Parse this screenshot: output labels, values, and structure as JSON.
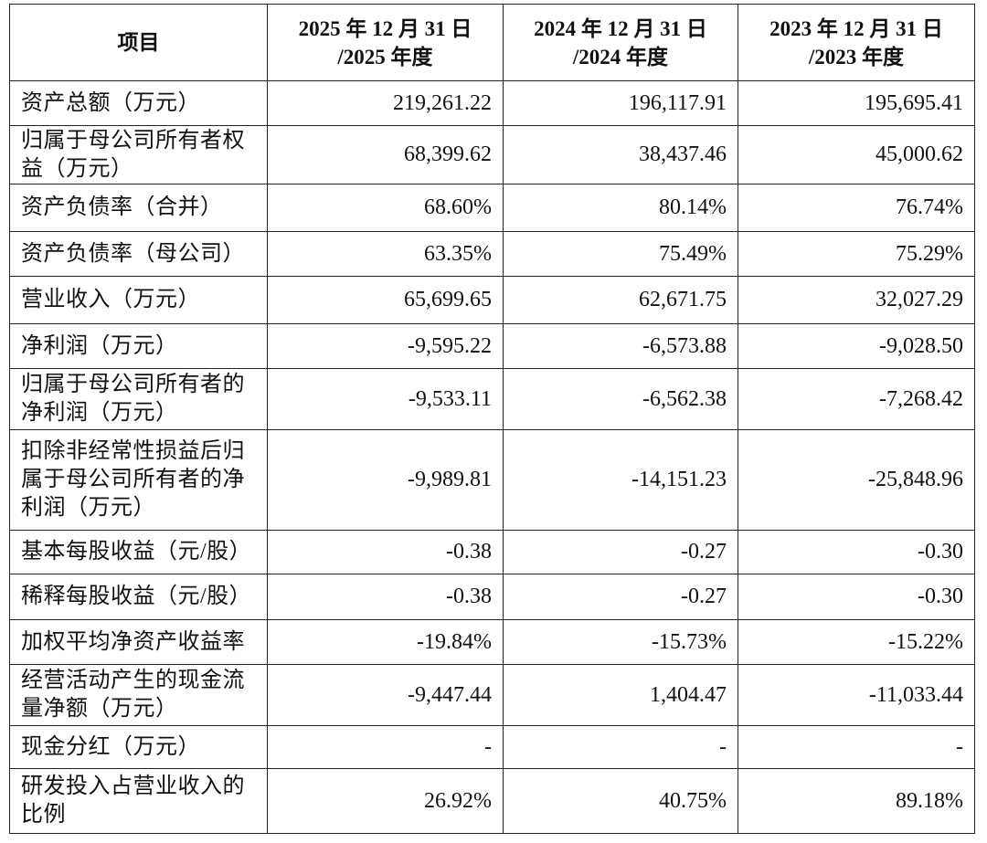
{
  "table": {
    "header": [
      "项目",
      [
        "2025 年 12 月 31 日",
        "/2025 年度"
      ],
      [
        "2024 年 12 月 31 日",
        "/2024 年度"
      ],
      [
        "2023 年 12 月 31 日",
        "/2023 年度"
      ]
    ],
    "rows": [
      [
        "资产总额（万元）",
        "219,261.22",
        "196,117.91",
        "195,695.41"
      ],
      [
        "归属于母公司所有者权益（万元）",
        "68,399.62",
        "38,437.46",
        "45,000.62"
      ],
      [
        "资产负债率（合并）",
        "68.60%",
        "80.14%",
        "76.74%"
      ],
      [
        "资产负债率（母公司）",
        "63.35%",
        "75.49%",
        "75.29%"
      ],
      [
        "营业收入（万元）",
        "65,699.65",
        "62,671.75",
        "32,027.29"
      ],
      [
        "净利润（万元）",
        "-9,595.22",
        "-6,573.88",
        "-9,028.50"
      ],
      [
        "归属于母公司所有者的净利润（万元）",
        "-9,533.11",
        "-6,562.38",
        "-7,268.42"
      ],
      [
        "扣除非经常性损益后归属于母公司所有者的净利润（万元）",
        "-9,989.81",
        "-14,151.23",
        "-25,848.96"
      ],
      [
        "基本每股收益（元/股）",
        "-0.38",
        "-0.27",
        "-0.30"
      ],
      [
        "稀释每股收益（元/股）",
        "-0.38",
        "-0.27",
        "-0.30"
      ],
      [
        "加权平均净资产收益率",
        "-19.84%",
        "-15.73%",
        "-15.22%"
      ],
      [
        "经营活动产生的现金流量净额（万元）",
        "-9,447.44",
        "1,404.47",
        "-11,033.44"
      ],
      [
        "现金分红（万元）",
        "-",
        "-",
        "-"
      ],
      [
        "研发投入占营业收入的比例",
        "26.92%",
        "40.75%",
        "89.18%"
      ]
    ]
  }
}
